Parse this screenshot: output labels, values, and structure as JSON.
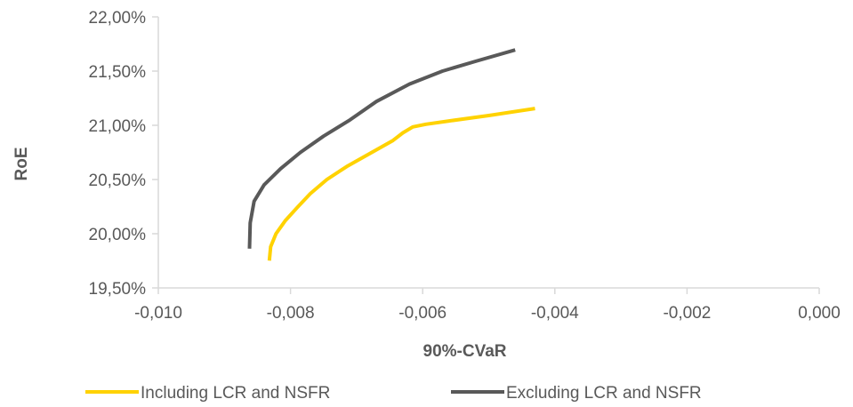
{
  "chart_data": {
    "type": "line",
    "title": "",
    "xlabel": "90%-CVaR",
    "ylabel": "RoE",
    "xlim": [
      -0.01,
      0.0
    ],
    "ylim": [
      0.195,
      0.22
    ],
    "x_ticks": [
      -0.01,
      -0.008,
      -0.006,
      -0.004,
      -0.002,
      0.0
    ],
    "x_tick_labels": [
      "-0,010",
      "-0,008",
      "-0,006",
      "-0,004",
      "-0,002",
      "0,000"
    ],
    "y_ticks": [
      0.195,
      0.2,
      0.205,
      0.21,
      0.215,
      0.22
    ],
    "y_tick_labels": [
      "19,50%",
      "20,00%",
      "20,50%",
      "21,00%",
      "21,50%",
      "22,00%"
    ],
    "grid": false,
    "legend_position": "bottom",
    "series": [
      {
        "name": "Including LCR and NSFR",
        "color": "#FFD200",
        "x": [
          -0.00832,
          -0.0083,
          -0.00822,
          -0.00808,
          -0.0079,
          -0.0077,
          -0.00745,
          -0.00715,
          -0.0068,
          -0.00645,
          -0.0063,
          -0.00615,
          -0.00595,
          -0.0056,
          -0.005,
          -0.0043
        ],
        "y": [
          0.19752,
          0.1988,
          0.2,
          0.2012,
          0.2024,
          0.2037,
          0.205,
          0.2062,
          0.2074,
          0.2086,
          0.2093,
          0.20985,
          0.2101,
          0.2104,
          0.2109,
          0.21155
        ]
      },
      {
        "name": "Excluding LCR and NSFR",
        "color": "#595959",
        "x": [
          -0.00862,
          -0.00861,
          -0.00855,
          -0.0084,
          -0.00815,
          -0.00785,
          -0.0075,
          -0.0071,
          -0.0067,
          -0.0062,
          -0.0057,
          -0.0052,
          -0.0046
        ],
        "y": [
          0.19862,
          0.201,
          0.203,
          0.2045,
          0.206,
          0.2075,
          0.209,
          0.2105,
          0.2122,
          0.2138,
          0.215,
          0.2159,
          0.21695
        ]
      }
    ]
  }
}
